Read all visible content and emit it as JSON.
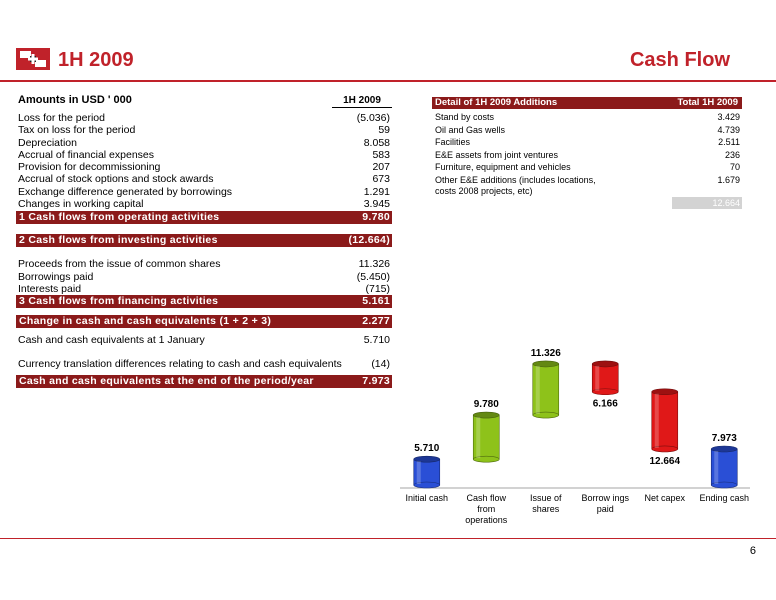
{
  "header": {
    "left_title": "1H 2009",
    "right_title": "Cash Flow",
    "brand_color": "#c0222a"
  },
  "left_table": {
    "title": "Amounts in USD ' 000",
    "column_header": "1H 2009",
    "operating_rows": [
      {
        "label": "Loss for the period",
        "value": "(5.036)"
      },
      {
        "label": "Tax on loss for the period",
        "value": "59"
      },
      {
        "label": "Depreciation",
        "value": "8.058"
      },
      {
        "label": "Accrual of financial expenses",
        "value": "583"
      },
      {
        "label": "Provision for decommissioning",
        "value": "207"
      },
      {
        "label": "Accrual of stock options and stock awards",
        "value": "673"
      },
      {
        "label": "Exchange difference generated by borrowings",
        "value": "1.291"
      },
      {
        "label": "Changes in working capital",
        "value": "3.945"
      }
    ],
    "band_operating": {
      "label": "1 Cash flows from operating activities",
      "value": "9.780"
    },
    "band_investing": {
      "label": "2 Cash flows from investing activities",
      "value": "(12.664)"
    },
    "financing_rows": [
      {
        "label": "Proceeds from the issue of common shares",
        "value": "11.326"
      },
      {
        "label": "Borrowings paid",
        "value": "(5.450)"
      },
      {
        "label": "Interests paid",
        "value": "(715)"
      }
    ],
    "band_financing": {
      "label": "3 Cash flows from financing activities",
      "value": "5.161"
    },
    "band_change": {
      "label": "Change in cash and cash equivalents (1 + 2 + 3)",
      "value": "2.277"
    },
    "opening": {
      "label": "Cash and cash equivalents at 1 January",
      "value": "5.710"
    },
    "currency": {
      "label": "Currency translation differences relating to cash and cash equivalents",
      "value": "(14)"
    },
    "band_end": {
      "label": "Cash and cash equivalents at the end of the period/year",
      "value": "7.973"
    }
  },
  "right_table": {
    "header_label": "Detail of 1H 2009 Additions",
    "header_total": "Total 1H 2009",
    "rows": [
      {
        "label": "Stand by costs",
        "value": "3.429"
      },
      {
        "label": "Oil and Gas wells",
        "value": "4.739"
      },
      {
        "label": "Facilities",
        "value": "2.511"
      },
      {
        "label": "E&E assets from joint ventures",
        "value": "236"
      },
      {
        "label": "Furniture, equipment and vehicles",
        "value": "70"
      },
      {
        "label": "Other E&E additions (includes locations,",
        "value": "1.679"
      }
    ],
    "continuation": "costs 2008 projects, etc)",
    "total": "12.664"
  },
  "chart_data": {
    "type": "bar",
    "subtype": "waterfall",
    "categories": [
      "Initial cash",
      "Cash flow from operations",
      "Issue of shares",
      "Borrow ings paid",
      "Net capex",
      "Ending cash"
    ],
    "category_lines": [
      [
        "Initial cash"
      ],
      [
        "Cash flow",
        "from",
        "operations"
      ],
      [
        "Issue of",
        "shares"
      ],
      [
        "Borrow ings",
        "paid"
      ],
      [
        "Net capex"
      ],
      [
        "Ending cash"
      ]
    ],
    "values": [
      5710,
      9780,
      11326,
      -6166,
      -12664,
      7973
    ],
    "data_labels": [
      "5.710",
      "9.780",
      "11.326",
      "6.166",
      "12.664",
      "7.973"
    ],
    "colors": [
      "#2a4fd6",
      "#8ec21a",
      "#8ec21a",
      "#e01818",
      "#e01818",
      "#2a4fd6"
    ],
    "title": "",
    "xlabel": "",
    "ylabel": "",
    "ylim": [
      0,
      31000
    ],
    "grid": false,
    "legend": "none"
  },
  "page": {
    "number": "6"
  }
}
